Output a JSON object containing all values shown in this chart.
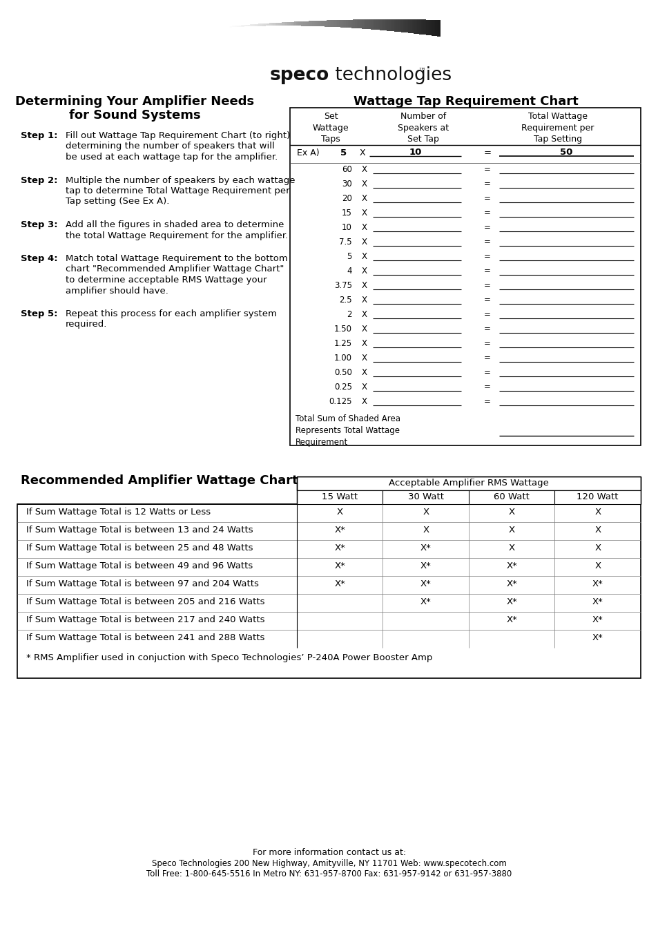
{
  "bg_color": "#ffffff",
  "logo_bold": "speco",
  "logo_regular": " technologies",
  "logo_tm": "™",
  "left_title_line1": "Determining Your Amplifier Needs",
  "left_title_line2": "for Sound Systems",
  "steps": [
    {
      "step": "Step 1:",
      "lines": [
        "Fill out Wattage Tap Requirement Chart (to right)",
        "determining the number of speakers that will",
        "be used at each wattage tap for the amplifier."
      ]
    },
    {
      "step": "Step 2:",
      "lines": [
        "Multiple the number of speakers by each wattage",
        "tap to determine Total Wattage Requirement per",
        "Tap setting (See Ex A)."
      ]
    },
    {
      "step": "Step 3:",
      "lines": [
        "Add all the figures in shaded area to determine",
        "the total Wattage Requirement for the amplifier."
      ]
    },
    {
      "step": "Step 4:",
      "lines": [
        "Match total Wattage Requirement to the bottom",
        "chart \"Recommended Amplifier Wattage Chart\"",
        "to determine acceptable RMS Wattage your",
        "amplifier should have."
      ]
    },
    {
      "step": "Step 5:",
      "lines": [
        "Repeat this process for each amplifier system",
        "required."
      ]
    }
  ],
  "right_title": "Wattage Tap Requirement Chart",
  "tap_col1_header": "Set\nWattage\nTaps",
  "tap_col2_header": "Number of\nSpeakers at\nSet Tap",
  "tap_col3_header": "Total Wattage\nRequirement per\nTap Setting",
  "tap_values": [
    "60",
    "30",
    "20",
    "15",
    "10",
    "7.5",
    "5",
    "4",
    "3.75",
    "2.5",
    "2",
    "1.50",
    "1.25",
    "1.00",
    "0.50",
    "0.25",
    "0.125"
  ],
  "total_sum_text": "Total Sum of Shaded Area\nRepresents Total Wattage\nRequirement",
  "shaded_color": "#d8d8d8",
  "bottom_left_title": "Recommended Amplifier Wattage Chart",
  "bottom_right_header": "Acceptable Amplifier RMS Wattage",
  "watt_cols": [
    "15 Watt",
    "30 Watt",
    "60 Watt",
    "120 Watt"
  ],
  "bottom_rows": [
    {
      "label": "If Sum Wattage Total is 12 Watts or Less",
      "vals": [
        "X",
        "X",
        "X",
        "X"
      ]
    },
    {
      "label": "If Sum Wattage Total is between 13 and 24 Watts",
      "vals": [
        "X*",
        "X",
        "X",
        "X"
      ]
    },
    {
      "label": "If Sum Wattage Total is between 25 and 48 Watts",
      "vals": [
        "X*",
        "X*",
        "X",
        "X"
      ]
    },
    {
      "label": "If Sum Wattage Total is between 49 and 96 Watts",
      "vals": [
        "X*",
        "X*",
        "X*",
        "X"
      ]
    },
    {
      "label": "If Sum Wattage Total is between 97 and 204 Watts",
      "vals": [
        "X*",
        "X*",
        "X*",
        "X*"
      ]
    },
    {
      "label": "If Sum Wattage Total is between 205 and 216 Watts",
      "vals": [
        "",
        "X*",
        "X*",
        "X*"
      ]
    },
    {
      "label": "If Sum Wattage Total is between 217 and 240 Watts",
      "vals": [
        "",
        "",
        "X*",
        "X*"
      ]
    },
    {
      "label": "If Sum Wattage Total is between 241 and 288 Watts",
      "vals": [
        "",
        "",
        "",
        "X*"
      ]
    }
  ],
  "bottom_footnote": "* RMS Amplifier used in conjuction with Speco Technologies’ P-240A Power Booster Amp",
  "footer_line1": "For more information contact us at:",
  "footer_line2_b1": "Speco Technologies",
  "footer_line2_r1": " 200 New Highway, Amityville, NY 11701 ",
  "footer_line2_b2": "Web:",
  "footer_line2_r2": " www.specotech.com",
  "footer_line3_b1": "Toll Free:",
  "footer_line3_r1": " 1-800-645-5516 ",
  "footer_line3_b2": "In Metro NY:",
  "footer_line3_r2": " 631-957-8700 ",
  "footer_line3_b3": "Fax:",
  "footer_line3_r3": " 631-957-9142 or 631-957-3880"
}
